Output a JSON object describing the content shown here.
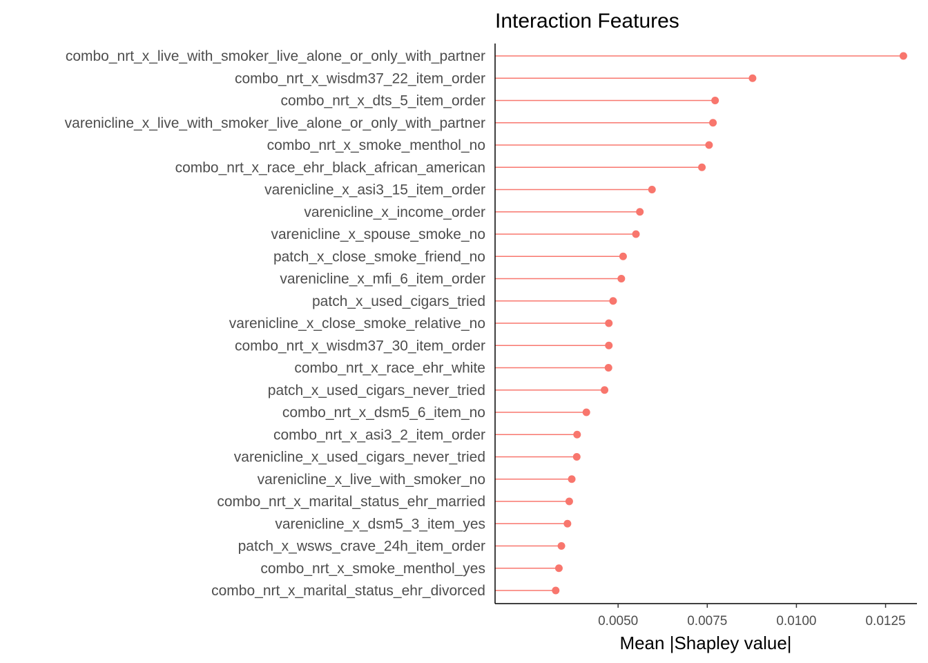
{
  "chart_data": {
    "type": "lollipop",
    "title": "Interaction Features",
    "xlabel": "Mean |Shapley value|",
    "ylabel": "",
    "xlim": [
      0.00155,
      0.01338
    ],
    "xticks": [
      "0.0050",
      "0.0075",
      "0.0100",
      "0.0125"
    ],
    "xtick_values": [
      0.005,
      0.0075,
      0.01,
      0.0125
    ],
    "grid": false,
    "color": "#F8766D",
    "categories": [
      "combo_nrt_x_live_with_smoker_live_alone_or_only_with_partner",
      "combo_nrt_x_wisdm37_22_item_order",
      "combo_nrt_x_dts_5_item_order",
      "varenicline_x_live_with_smoker_live_alone_or_only_with_partner",
      "combo_nrt_x_smoke_menthol_no",
      "combo_nrt_x_race_ehr_black_african_american",
      "varenicline_x_asi3_15_item_order",
      "varenicline_x_income_order",
      "varenicline_x_spouse_smoke_no",
      "patch_x_close_smoke_friend_no",
      "varenicline_x_mfi_6_item_order",
      "patch_x_used_cigars_tried",
      "varenicline_x_close_smoke_relative_no",
      "combo_nrt_x_wisdm37_30_item_order",
      "combo_nrt_x_race_ehr_white",
      "patch_x_used_cigars_never_tried",
      "combo_nrt_x_dsm5_6_item_no",
      "combo_nrt_x_asi3_2_item_order",
      "varenicline_x_used_cigars_never_tried",
      "varenicline_x_live_with_smoker_no",
      "combo_nrt_x_marital_status_ehr_married",
      "varenicline_x_dsm5_3_item_yes",
      "patch_x_wsws_crave_24h_item_order",
      "combo_nrt_x_smoke_menthol_yes",
      "combo_nrt_x_marital_status_ehr_divorced"
    ],
    "values": [
      0.013,
      0.00877,
      0.00772,
      0.00766,
      0.00755,
      0.00735,
      0.00595,
      0.00561,
      0.0055,
      0.00514,
      0.00509,
      0.00486,
      0.00474,
      0.00474,
      0.00473,
      0.00462,
      0.00411,
      0.00385,
      0.00384,
      0.0037,
      0.00363,
      0.00358,
      0.00341,
      0.00334,
      0.00325
    ]
  }
}
